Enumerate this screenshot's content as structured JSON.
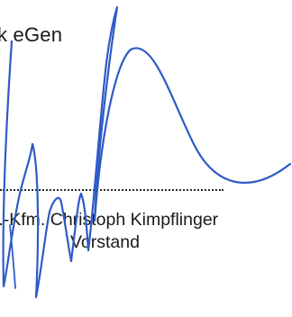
{
  "document": {
    "organization_fragment": "k eGen",
    "signer_name": "l.-Kfm. Christoph Kimpflinger",
    "signer_role": "Vorstand",
    "colors": {
      "text": "#1a1a1a",
      "signature_ink": "#2f5bc7"
    }
  }
}
